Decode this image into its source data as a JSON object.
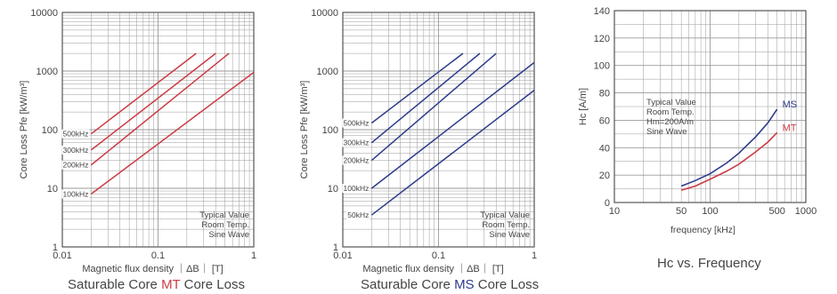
{
  "colors": {
    "red": "#cc3b45",
    "blue": "#2e3b8c",
    "grid": "#9a9a9a",
    "text": "#444444"
  },
  "chart_data": [
    {
      "type": "line",
      "xscale": "log",
      "yscale": "log",
      "xlim": [
        0.01,
        1
      ],
      "ylim": [
        1,
        10000
      ],
      "xticks": [
        "0.01",
        "0.1",
        "1"
      ],
      "yticks": [
        "1",
        "10",
        "100",
        "1000",
        "10000"
      ],
      "xlabel": "Magnetic flux density ｜ΔB｜ [T]",
      "ylabel": "Core Loss Pfe [kW/m³]",
      "notes": [
        "Typical Value",
        "Room Temp.",
        "Sine Wave"
      ],
      "title_parts": [
        "Saturable Core ",
        "MT",
        " Core Loss"
      ],
      "color": "#cc3b45",
      "series": [
        {
          "name": "500kHz",
          "x": [
            0.02,
            0.25
          ],
          "y": [
            85,
            2000
          ]
        },
        {
          "name": "300kHz",
          "x": [
            0.02,
            0.4
          ],
          "y": [
            45,
            2000
          ]
        },
        {
          "name": "200kHz",
          "x": [
            0.02,
            0.55
          ],
          "y": [
            25,
            2000
          ]
        },
        {
          "name": "100kHz",
          "x": [
            0.02,
            1.0
          ],
          "y": [
            8,
            950
          ]
        }
      ]
    },
    {
      "type": "line",
      "xscale": "log",
      "yscale": "log",
      "xlim": [
        0.01,
        1
      ],
      "ylim": [
        1,
        10000
      ],
      "xticks": [
        "0.01",
        "0.1",
        "1"
      ],
      "yticks": [
        "1",
        "10",
        "100",
        "1000",
        "10000"
      ],
      "xlabel": "Magnetic flux density ｜ΔB｜ [T]",
      "ylabel": "Core Loss Pfe [kW/m³]",
      "notes": [
        "Typical Value",
        "Room Temp.",
        "Sine Wave"
      ],
      "title_parts": [
        "Saturable Core ",
        "MS",
        " Core Loss"
      ],
      "color": "#2e3b8c",
      "series": [
        {
          "name": "500kHz",
          "x": [
            0.02,
            0.18
          ],
          "y": [
            130,
            2000
          ]
        },
        {
          "name": "300kHz",
          "x": [
            0.02,
            0.27
          ],
          "y": [
            60,
            2000
          ]
        },
        {
          "name": "200kHz",
          "x": [
            0.02,
            0.4
          ],
          "y": [
            30,
            2000
          ]
        },
        {
          "name": "100kHz",
          "x": [
            0.02,
            1.0
          ],
          "y": [
            10,
            1400
          ]
        },
        {
          "name": "50kHz",
          "x": [
            0.02,
            1.0
          ],
          "y": [
            3.5,
            470
          ]
        }
      ]
    },
    {
      "type": "line",
      "xscale": "log",
      "yscale": "linear",
      "xlim": [
        10,
        1000
      ],
      "ylim": [
        0,
        140
      ],
      "xticks": [
        "10",
        "50",
        "100",
        "500",
        "1000"
      ],
      "yticks": [
        "0",
        "20",
        "40",
        "60",
        "80",
        "100",
        "120",
        "140"
      ],
      "xlabel": "frequency [kHz]",
      "ylabel": "Hc [A/m]",
      "notes": [
        "Typical Value",
        "Room Temp.",
        "Hm=200A/m",
        "Sine Wave"
      ],
      "title": "Hc vs. Frequency",
      "series": [
        {
          "name": "MS",
          "color": "#2e3b8c",
          "x": [
            50,
            70,
            100,
            150,
            200,
            300,
            400,
            500
          ],
          "y": [
            12,
            16,
            21,
            29,
            36,
            48,
            58,
            68
          ]
        },
        {
          "name": "MT",
          "color": "#cc3b45",
          "x": [
            50,
            70,
            100,
            150,
            200,
            300,
            400,
            500
          ],
          "y": [
            9,
            12,
            17,
            23,
            28,
            37,
            44,
            51
          ]
        }
      ]
    }
  ]
}
